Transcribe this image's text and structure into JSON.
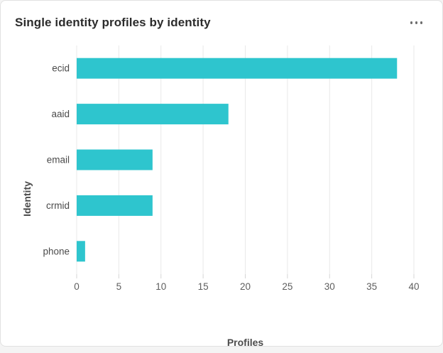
{
  "card": {
    "title": "Single identity profiles by identity",
    "more_options_icon": "more-horizontal"
  },
  "chart_data": {
    "type": "bar",
    "orientation": "horizontal",
    "categories": [
      "ecid",
      "aaid",
      "email",
      "crmid",
      "phone"
    ],
    "values": [
      38,
      18,
      9,
      9,
      1
    ],
    "title": "Single identity profiles by identity",
    "xlabel": "Profiles",
    "ylabel": "Identity",
    "xlim": [
      0,
      40
    ],
    "xticks": [
      0,
      5,
      10,
      15,
      20,
      25,
      30,
      35,
      40
    ],
    "grid": true,
    "legend": "none",
    "colors": {
      "bar": "#2ec5ce",
      "gridline": "#e9e9e9",
      "tick_mark": "#d5d5d5",
      "tick_label": "#5e5e5e",
      "category_label": "#4b4b4b",
      "axis_title": "#4b4b4b",
      "card_border": "#e1e1e1",
      "title_text": "#2c2c2c"
    }
  }
}
